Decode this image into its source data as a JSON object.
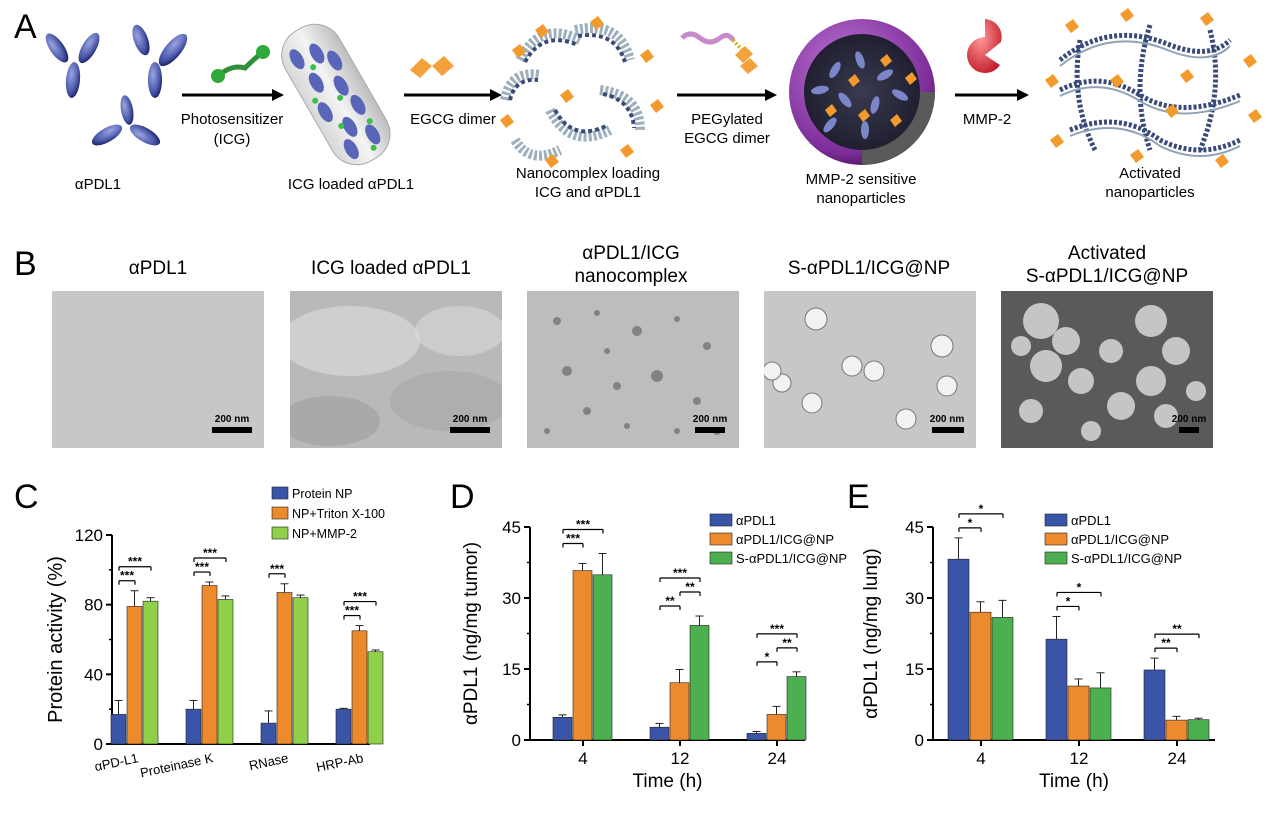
{
  "panels": {
    "A": {
      "label": "A",
      "steps": {
        "apdl1": "αPDL1",
        "arrow1_top": "Photosensitizer",
        "arrow1_bottom": "(ICG)",
        "icg_loaded": "ICG loaded αPDL1",
        "arrow2": "EGCG dimer",
        "nanocomplex_l1": "Nanocomplex loading",
        "nanocomplex_l2": "ICG and αPDL1",
        "arrow3_top": "PEGylated",
        "arrow3_bottom": "EGCG dimer",
        "mmp_np_l1": "MMP-2 sensitive",
        "mmp_np_l2": "nanoparticles",
        "arrow4": "MMP-2",
        "activated_l1": "Activated",
        "activated_l2": "nanoparticles"
      }
    },
    "B": {
      "label": "B",
      "images": [
        {
          "title_l1": "αPDL1",
          "title_l2": "",
          "scale": "200 nm"
        },
        {
          "title_l1": "ICG loaded αPDL1",
          "title_l2": "",
          "scale": "200 nm"
        },
        {
          "title_l1": "αPDL1/ICG",
          "title_l2": "nanocomplex",
          "scale": "200 nm"
        },
        {
          "title_l1": "S-αPDL1/ICG@NP",
          "title_l2": "",
          "scale": "200 nm"
        },
        {
          "title_l1": "Activated",
          "title_l2": "S-αPDL1/ICG@NP",
          "scale": "200 nm"
        }
      ]
    },
    "C": {
      "label": "C"
    },
    "D": {
      "label": "D"
    },
    "E": {
      "label": "E"
    }
  },
  "colors": {
    "blue": "#3a55a8",
    "orange": "#ee8a2e",
    "green": "#5cb85c",
    "lightgreen": "#8fcf4a"
  },
  "chart_data": [
    {
      "id": "C",
      "type": "bar",
      "ylabel": "Protein activity (%)",
      "xlabel": "",
      "ylim": [
        0,
        120
      ],
      "yticks": [
        "0",
        "40",
        "80",
        "120"
      ],
      "categories": [
        "αPD-L1",
        "Proteinase K",
        "RNase",
        "HRP-Ab"
      ],
      "series": [
        {
          "name": "Protein NP",
          "color": "#3a55a8",
          "values": [
            17,
            20,
            12,
            20
          ],
          "errors": [
            8,
            5,
            7,
            0.5
          ]
        },
        {
          "name": "NP+Triton X-100",
          "color": "#ee8a2e",
          "values": [
            79,
            91,
            87,
            65
          ],
          "errors": [
            9,
            2,
            5,
            3
          ]
        },
        {
          "name": "NP+MMP-2",
          "color": "#8fcf4a",
          "values": [
            82,
            83,
            84,
            53
          ],
          "errors": [
            2,
            2,
            1.5,
            1
          ]
        }
      ],
      "annotations": [
        {
          "cat": 0,
          "from": 0,
          "to": 1,
          "text": "***"
        },
        {
          "cat": 0,
          "from": 0,
          "to": 2,
          "text": "***"
        },
        {
          "cat": 1,
          "from": 0,
          "to": 1,
          "text": "***"
        },
        {
          "cat": 1,
          "from": 0,
          "to": 2,
          "text": "***"
        },
        {
          "cat": 2,
          "from": 0,
          "to": 1,
          "text": "***"
        },
        {
          "cat": 3,
          "from": 0,
          "to": 1,
          "text": "***"
        },
        {
          "cat": 3,
          "from": 0,
          "to": 2,
          "text": "***"
        }
      ],
      "legend": "top-right",
      "grid": false
    },
    {
      "id": "D",
      "type": "bar",
      "ylabel": "αPDL1 (ng/mg tumor)",
      "xlabel": "Time (h)",
      "ylim": [
        0,
        45
      ],
      "yticks": [
        "0",
        "15",
        "30",
        "45"
      ],
      "categories": [
        "4",
        "12",
        "24"
      ],
      "series": [
        {
          "name": "αPDL1",
          "color": "#3a55a8",
          "values": [
            4.8,
            2.7,
            1.4
          ],
          "errors": [
            0.5,
            0.8,
            0.4
          ]
        },
        {
          "name": "αPDL1/ICG@NP",
          "color": "#ee8a2e",
          "values": [
            35.8,
            12.1,
            5.4
          ],
          "errors": [
            1.5,
            2.8,
            1.7
          ]
        },
        {
          "name": "S-αPDL1/ICG@NP",
          "color": "#4caf50",
          "values": [
            34.9,
            24.2,
            13.4
          ],
          "errors": [
            4.5,
            2.0,
            1.0
          ]
        }
      ],
      "annotations": [
        {
          "cat": 0,
          "from": 0,
          "to": 1,
          "text": "***"
        },
        {
          "cat": 0,
          "from": 0,
          "to": 2,
          "text": "***"
        },
        {
          "cat": 1,
          "from": 0,
          "to": 1,
          "text": "**"
        },
        {
          "cat": 1,
          "from": 1,
          "to": 2,
          "text": "**"
        },
        {
          "cat": 1,
          "from": 0,
          "to": 2,
          "text": "***"
        },
        {
          "cat": 2,
          "from": 0,
          "to": 1,
          "text": "*"
        },
        {
          "cat": 2,
          "from": 1,
          "to": 2,
          "text": "**"
        },
        {
          "cat": 2,
          "from": 0,
          "to": 2,
          "text": "***"
        }
      ],
      "legend": "top-right",
      "grid": false
    },
    {
      "id": "E",
      "type": "bar",
      "ylabel": "αPDL1 (ng/mg lung)",
      "xlabel": "Time (h)",
      "ylim": [
        0,
        45
      ],
      "yticks": [
        "0",
        "15",
        "30",
        "45"
      ],
      "categories": [
        "4",
        "12",
        "24"
      ],
      "series": [
        {
          "name": "αPDL1",
          "color": "#3a55a8",
          "values": [
            38.2,
            21.3,
            14.8
          ],
          "errors": [
            4.5,
            4.8,
            2.5
          ]
        },
        {
          "name": "αPDL1/ICG@NP",
          "color": "#ee8a2e",
          "values": [
            27.0,
            11.4,
            4.2
          ],
          "errors": [
            2.2,
            1.5,
            0.8
          ]
        },
        {
          "name": "S-αPDL1/ICG@NP",
          "color": "#4caf50",
          "values": [
            25.9,
            11.0,
            4.3
          ],
          "errors": [
            3.6,
            3.2,
            0.3
          ]
        }
      ],
      "annotations": [
        {
          "cat": 0,
          "from": 0,
          "to": 1,
          "text": "*"
        },
        {
          "cat": 0,
          "from": 0,
          "to": 2,
          "text": "*"
        },
        {
          "cat": 1,
          "from": 0,
          "to": 1,
          "text": "*"
        },
        {
          "cat": 1,
          "from": 0,
          "to": 2,
          "text": "*"
        },
        {
          "cat": 2,
          "from": 0,
          "to": 1,
          "text": "**"
        },
        {
          "cat": 2,
          "from": 0,
          "to": 2,
          "text": "**"
        }
      ],
      "legend": "top-right",
      "grid": false
    }
  ]
}
